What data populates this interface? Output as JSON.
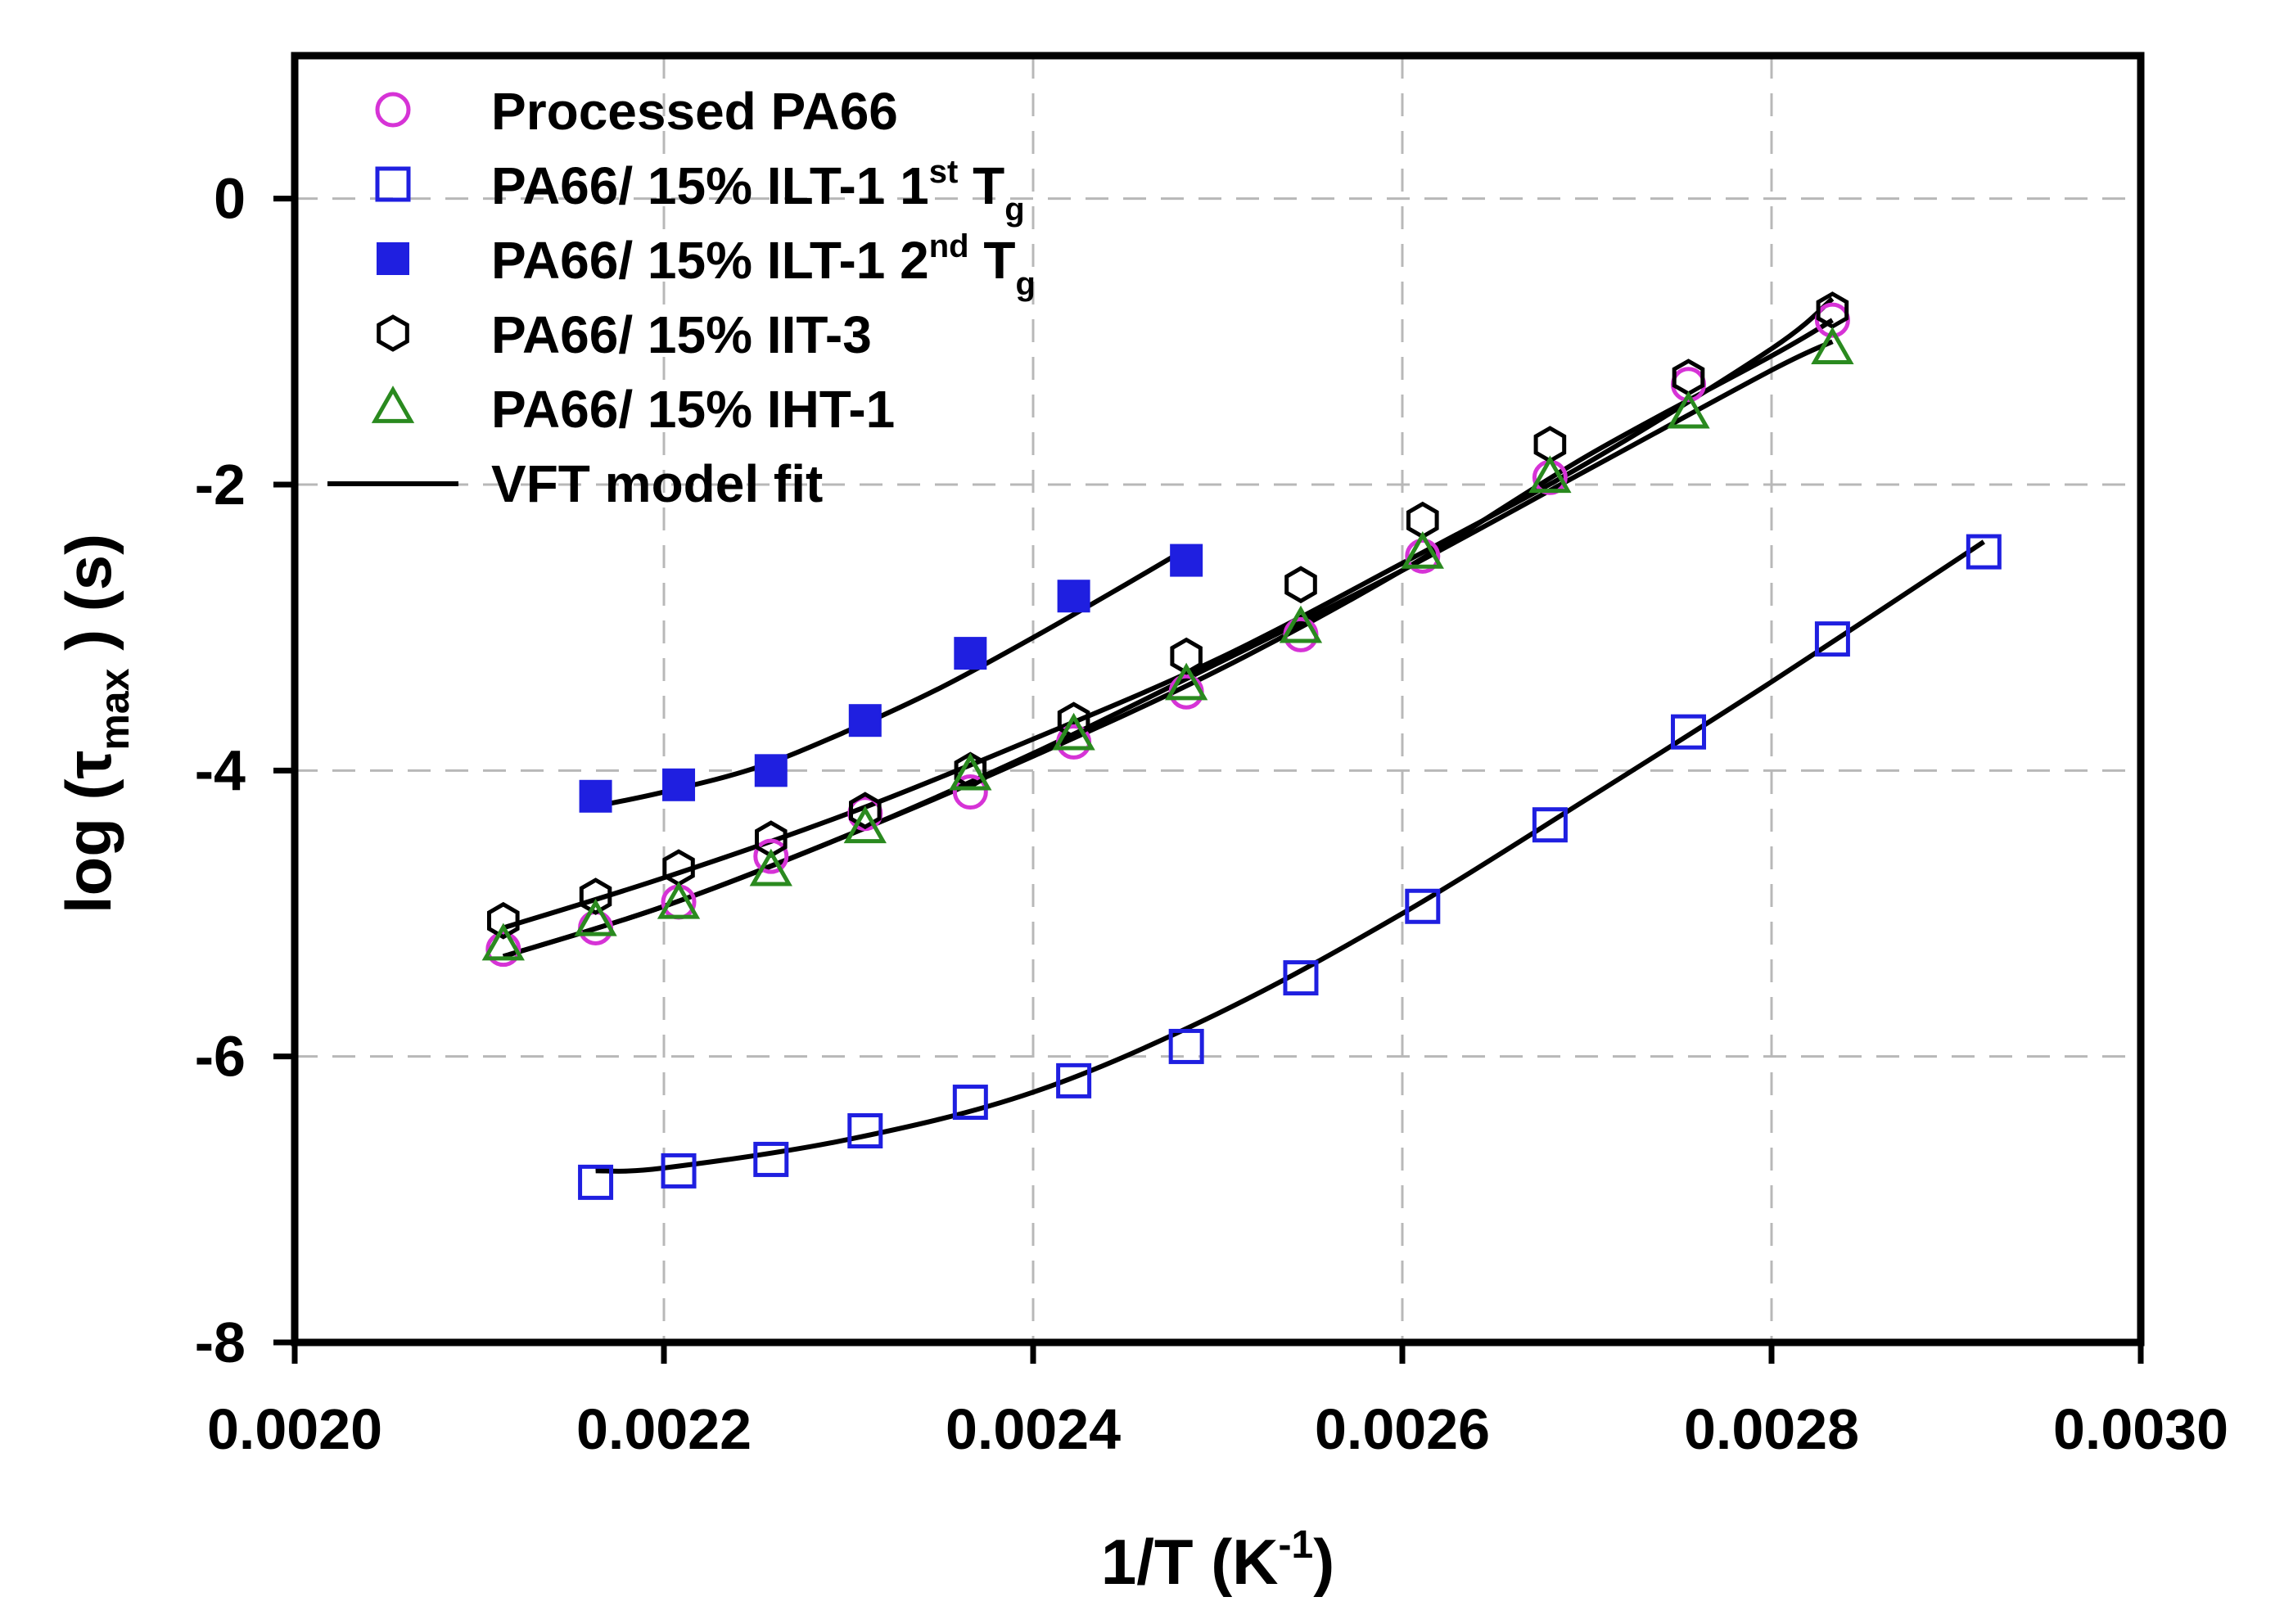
{
  "chart_data": {
    "type": "scatter",
    "xlabel": {
      "main": "1/T (K",
      "sup": "-1",
      "end": ")"
    },
    "ylabel": {
      "main": "log (τ",
      "sub": "max",
      "end": " ) (s)"
    },
    "xlim": [
      0.002,
      0.003
    ],
    "ylim": [
      -8,
      1
    ],
    "xticks": [
      0.002,
      0.0022,
      0.0024,
      0.0026,
      0.0028,
      0.003
    ],
    "xtick_labels": [
      "0.0020",
      "0.0022",
      "0.0024",
      "0.0026",
      "0.0028",
      "0.0030"
    ],
    "yticks": [
      -8,
      -6,
      -4,
      -2,
      0
    ],
    "ytick_labels": [
      "-8",
      "-6",
      "-4",
      "-2",
      "0"
    ],
    "grid": true,
    "legend_position": "top-left",
    "series": [
      {
        "name": "Processed PA66",
        "marker": "circle-open",
        "color": "#d633d6",
        "x": [
          0.002113,
          0.002163,
          0.002208,
          0.002258,
          0.002309,
          0.002366,
          0.002422,
          0.002483,
          0.002545,
          0.002611,
          0.00268,
          0.002755,
          0.002833
        ],
        "y": [
          -5.25,
          -5.1,
          -4.92,
          -4.6,
          -4.3,
          -4.15,
          -3.8,
          -3.45,
          -3.05,
          -2.5,
          -1.95,
          -1.3,
          -0.85
        ]
      },
      {
        "name": "PA66/ 15% ILT-1 1st Tg",
        "label_parts": [
          "PA66/ 15% ILT-1 1",
          "st",
          " T",
          "g"
        ],
        "marker": "square-open",
        "color": "#1f1fe0",
        "x": [
          0.002163,
          0.002208,
          0.002258,
          0.002309,
          0.002366,
          0.002422,
          0.002483,
          0.002545,
          0.002611,
          0.00268,
          0.002755,
          0.002833,
          0.002915
        ],
        "y": [
          -6.88,
          -6.8,
          -6.72,
          -6.52,
          -6.32,
          -6.17,
          -5.93,
          -5.45,
          -4.95,
          -4.38,
          -3.73,
          -3.08,
          -2.47
        ]
      },
      {
        "name": "PA66/ 15% ILT-1 2nd Tg",
        "label_parts": [
          "PA66/ 15% ILT-1 2",
          "nd",
          " T",
          "g"
        ],
        "marker": "square-filled",
        "color": "#1f1fe0",
        "x": [
          0.002163,
          0.002208,
          0.002258,
          0.002309,
          0.002366,
          0.002422,
          0.002483
        ],
        "y": [
          -4.18,
          -4.1,
          -4.0,
          -3.65,
          -3.18,
          -2.78,
          -2.53
        ]
      },
      {
        "name": "PA66/ 15% IIT-3",
        "marker": "hexagon-open",
        "color": "#000000",
        "x": [
          0.002113,
          0.002163,
          0.002208,
          0.002258,
          0.002309,
          0.002366,
          0.002422,
          0.002483,
          0.002545,
          0.002611,
          0.00268,
          0.002755,
          0.002833
        ],
        "y": [
          -5.05,
          -4.88,
          -4.68,
          -4.48,
          -4.28,
          -4.0,
          -3.65,
          -3.2,
          -2.7,
          -2.25,
          -1.72,
          -1.25,
          -0.78
        ]
      },
      {
        "name": "PA66/ 15% IHT-1",
        "marker": "triangle-open",
        "color": "#2a8a1f",
        "x": [
          0.002113,
          0.002163,
          0.002208,
          0.002258,
          0.002309,
          0.002366,
          0.002422,
          0.002483,
          0.002545,
          0.002611,
          0.00268,
          0.002755,
          0.002833
        ],
        "y": [
          -5.22,
          -5.05,
          -4.93,
          -4.7,
          -4.4,
          -4.03,
          -3.75,
          -3.4,
          -3.0,
          -2.48,
          -1.95,
          -1.5,
          -1.05
        ]
      }
    ],
    "fits": [
      {
        "name": "VFT model fit",
        "color": "#000000",
        "x": [
          0.002113,
          0.0022,
          0.0023,
          0.0024,
          0.0025,
          0.0026,
          0.0027,
          0.0028,
          0.002833
        ],
        "y": [
          -5.3,
          -4.95,
          -4.45,
          -3.9,
          -3.3,
          -2.6,
          -1.8,
          -1.1,
          -0.85
        ]
      },
      {
        "name": "VFT model fit",
        "color": "#000000",
        "x": [
          0.002113,
          0.0022,
          0.0023,
          0.0024,
          0.0025,
          0.0026,
          0.0027,
          0.0028,
          0.002833
        ],
        "y": [
          -5.1,
          -4.75,
          -4.3,
          -3.78,
          -3.22,
          -2.55,
          -1.85,
          -1.05,
          -0.7
        ]
      },
      {
        "name": "VFT model fit",
        "color": "#000000",
        "x": [
          0.002113,
          0.0022,
          0.0023,
          0.0024,
          0.0025,
          0.0026,
          0.0027,
          0.0028,
          0.002833
        ],
        "y": [
          -5.3,
          -4.95,
          -4.45,
          -3.88,
          -3.25,
          -2.6,
          -1.9,
          -1.2,
          -1.0
        ]
      },
      {
        "name": "VFT model fit",
        "color": "#000000",
        "x": [
          0.002163,
          0.0022,
          0.00225,
          0.0023,
          0.00235,
          0.0024,
          0.00245,
          0.002483
        ],
        "y": [
          -4.25,
          -4.15,
          -3.98,
          -3.72,
          -3.42,
          -3.07,
          -2.7,
          -2.45
        ]
      },
      {
        "name": "VFT model fit",
        "color": "#000000",
        "x": [
          0.002163,
          0.0022,
          0.0023,
          0.0024,
          0.0025,
          0.0026,
          0.0027,
          0.0028,
          0.002915
        ],
        "y": [
          -6.8,
          -6.78,
          -6.58,
          -6.25,
          -5.7,
          -5.0,
          -4.2,
          -3.38,
          -2.4
        ]
      }
    ],
    "legend_entries": [
      {
        "label": "Processed PA66",
        "marker": "circle-open",
        "color": "#d633d6"
      },
      {
        "label_parts": [
          "PA66/ 15% ILT-1 1",
          "st",
          " T",
          "g"
        ],
        "marker": "square-open",
        "color": "#1f1fe0"
      },
      {
        "label_parts": [
          "PA66/ 15% ILT-1 2",
          "nd",
          " T",
          "g"
        ],
        "marker": "square-filled",
        "color": "#1f1fe0"
      },
      {
        "label": "PA66/ 15% IIT-3",
        "marker": "hexagon-open",
        "color": "#000000"
      },
      {
        "label": "PA66/ 15% IHT-1",
        "marker": "triangle-open",
        "color": "#2a8a1f"
      },
      {
        "label": "VFT model fit",
        "marker": "line",
        "color": "#000000"
      }
    ]
  }
}
